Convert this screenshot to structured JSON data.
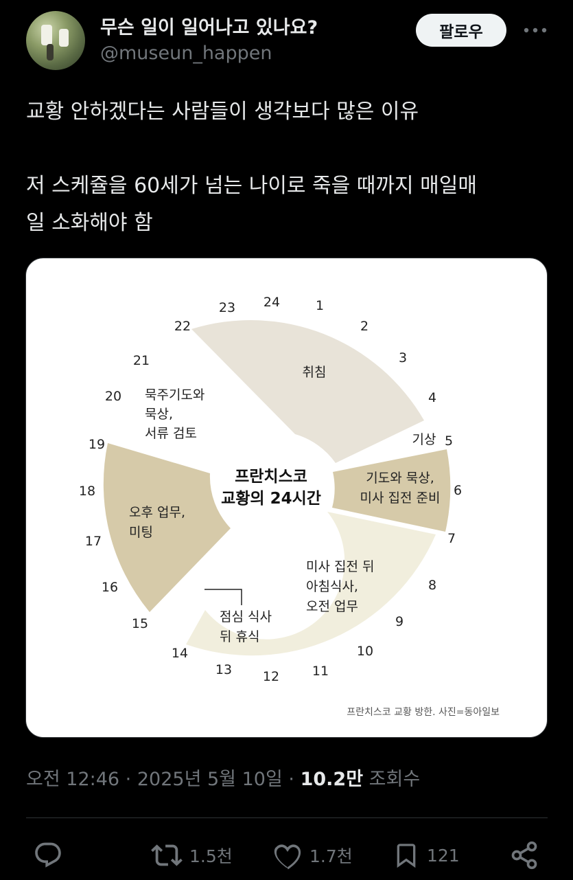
{
  "author": {
    "display_name": "무슨 일이 일어나고 있나요?",
    "handle": "@museun_happen",
    "follow_label": "팔로우",
    "more_icon": "more-horizontal-icon"
  },
  "tweet": {
    "line1": "교황 안하겠다는 사람들이 생각보다 많은 이유",
    "line2": "저 스케쥴을 60세가 넘는 나이로 죽을 때까지 매일매",
    "line3": "일 소화해야 함"
  },
  "chart": {
    "center_line1": "프란치스코",
    "center_line2": "교황의 24시간",
    "hours": [
      "24",
      "1",
      "2",
      "3",
      "4",
      "5",
      "6",
      "7",
      "8",
      "9",
      "10",
      "11",
      "12",
      "13",
      "14",
      "15",
      "16",
      "17",
      "18",
      "19",
      "20",
      "21",
      "22",
      "23"
    ],
    "segments": [
      {
        "lines": [
          "취침"
        ],
        "color": "#e8e3d8"
      },
      {
        "lines": [
          "기상"
        ],
        "color": "#ffffff"
      },
      {
        "lines": [
          "기도와 묵상,",
          "미사 집전 준비"
        ],
        "color": "#d6caa9"
      },
      {
        "lines": [
          "미사 집전 뒤",
          "아침식사,",
          "오전 업무"
        ],
        "color": "#f1eedd"
      },
      {
        "lines": [
          "점심 식사",
          "뒤 휴식"
        ],
        "color": "#f1eedd"
      },
      {
        "lines": [
          "오후 업무,",
          "미팅"
        ],
        "color": "#d6caa9"
      },
      {
        "lines": [
          "묵주기도와",
          "묵상,",
          "서류 검토"
        ],
        "color": "#ffffff"
      }
    ],
    "credit": "프란치스코 교황 방한. 사진=동아일보"
  },
  "meta": {
    "time": "오전 12:46",
    "sep1": "·",
    "date": "2025년 5월 10일",
    "sep2": "·",
    "views_count": "10.2만",
    "views_label": "조회수"
  },
  "actions": {
    "reply_icon": "reply-icon",
    "retweet_icon": "retweet-icon",
    "retweet_count": "1.5천",
    "like_icon": "heart-icon",
    "like_count": "1.7천",
    "bookmark_icon": "bookmark-icon",
    "bookmark_count": "121",
    "share_icon": "share-icon"
  }
}
